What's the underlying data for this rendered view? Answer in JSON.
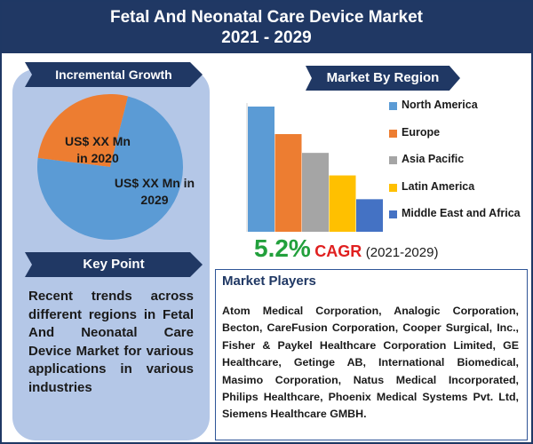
{
  "header": {
    "title_line1": "Fetal And Neonatal Care Device Market",
    "title_line2": "2021 - 2029"
  },
  "incremental_growth": {
    "label": "Incremental Growth",
    "slice_2020_label_line1": "US$ XX Mn",
    "slice_2020_label_line2": "in 2020",
    "slice_2029_label_line1": "US$ XX Mn in",
    "slice_2029_label_line2": "2029",
    "colors": {
      "slice_2020": "#ed7d31",
      "slice_2029": "#5b9bd5"
    }
  },
  "market_by_region": {
    "label": "Market By Region"
  },
  "key_point": {
    "label": "Key Point",
    "text": "Recent trends across different regions in Fetal And Neonatal Care Device Market for various applications in various industries"
  },
  "cagr": {
    "value": "5.2%",
    "label": "CAGR",
    "period": "(2021-2029)"
  },
  "market_players": {
    "title": "Market Players",
    "text": "Atom Medical Corporation, Analogic Corporation, Becton, CareFusion Corporation, Cooper Surgical, Inc., Fisher & Paykel Healthcare Corporation Limited, GE Healthcare, Getinge AB, International Biomedical, Masimo Corporation, Natus Medical Incorporated, Philips Healthcare, Phoenix Medical Systems Pvt. Ltd, Siemens Healthcare GMBH."
  },
  "chart_data": [
    {
      "type": "pie",
      "title": "",
      "categories": [
        "2020",
        "2029"
      ],
      "values": [
        27,
        73
      ],
      "colors": [
        "#ed7d31",
        "#5b9bd5"
      ]
    },
    {
      "type": "bar",
      "title": "",
      "categories": [
        "North America",
        "Europe",
        "Asia Pacific",
        "Latin America",
        "Middle East and Africa"
      ],
      "values": [
        100,
        78,
        63,
        45,
        26
      ],
      "colors": [
        "#5b9bd5",
        "#ed7d31",
        "#a5a5a5",
        "#ffc000",
        "#4472c4"
      ],
      "ylim": [
        0,
        100
      ],
      "legend": "right",
      "grid": false,
      "xlabel": "",
      "ylabel": ""
    }
  ]
}
